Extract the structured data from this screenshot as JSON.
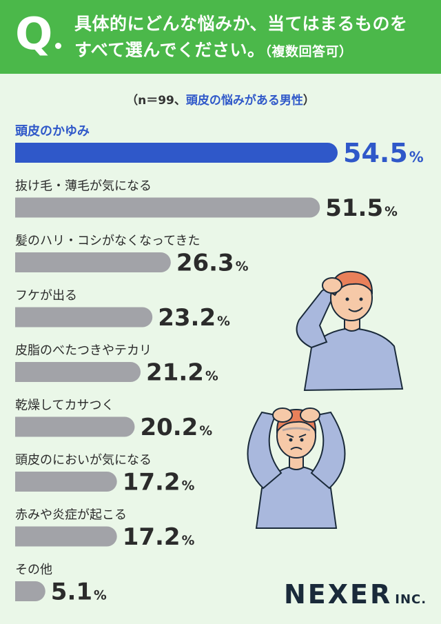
{
  "header": {
    "q_mark": "Q",
    "question_line1": "具体的にどんな悩みか、当てはまるものを",
    "question_line2": "すべて選んでください。",
    "question_note": "（複数回答可）"
  },
  "sample": {
    "open": "（n＝99、",
    "highlight": "頭皮の悩みがある男性",
    "close": "）"
  },
  "chart_data": {
    "type": "bar",
    "orientation": "horizontal",
    "unit": "%",
    "categories": [
      "頭皮のかゆみ",
      "抜け毛・薄毛が気になる",
      "髪のハリ・コシがなくなってきた",
      "フケが出る",
      "皮脂のべたつきやテカリ",
      "乾燥してカサつく",
      "頭皮のにおいが気になる",
      "赤みや炎症が起こる",
      "その他"
    ],
    "values": [
      54.5,
      51.5,
      26.3,
      23.2,
      21.2,
      20.2,
      17.2,
      17.2,
      5.1
    ],
    "value_labels": [
      "54.5",
      "51.5",
      "26.3",
      "23.2",
      "21.2",
      "20.2",
      "17.2",
      "17.2",
      "5.1"
    ],
    "highlight_index": 0,
    "colors": {
      "highlight": "#2f58c9",
      "default": "#a2a3a8",
      "label_highlight": "#2f58c9",
      "label_default": "#2b2b2b"
    }
  },
  "colors": {
    "header_bg": "#4bb84a",
    "page_bg": "#eaf7e8",
    "brand": "#1a2a3a"
  },
  "illustrations": [
    "man-scratching-head-icon",
    "man-holding-head-icon"
  ],
  "logo": {
    "main": "NEXER",
    "sub": "INC."
  }
}
